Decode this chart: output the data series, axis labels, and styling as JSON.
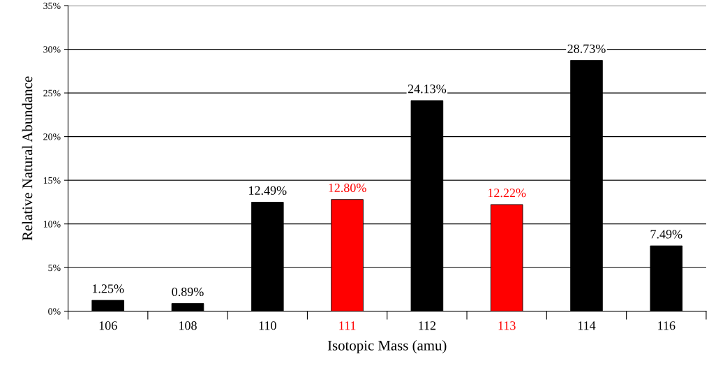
{
  "chart_data": {
    "type": "bar",
    "xlabel": "Isotopic Mass (amu)",
    "ylabel": "Relative Natural Abundance",
    "categories": [
      "106",
      "108",
      "110",
      "111",
      "112",
      "113",
      "114",
      "116"
    ],
    "values": [
      1.25,
      0.89,
      12.49,
      12.8,
      24.13,
      12.22,
      28.73,
      7.49
    ],
    "value_labels": [
      "1.25%",
      "0.89%",
      "12.49%",
      "12.80%",
      "24.13%",
      "12.22%",
      "28.73%",
      "7.49%"
    ],
    "colors": [
      "#000000",
      "#000000",
      "#000000",
      "#ff0000",
      "#000000",
      "#ff0000",
      "#000000",
      "#000000"
    ],
    "ylim": [
      0,
      35
    ],
    "yticks": [
      {
        "value": 0,
        "label": "0%"
      },
      {
        "value": 5,
        "label": "5%"
      },
      {
        "value": 10,
        "label": "10%"
      },
      {
        "value": 15,
        "label": "15%"
      },
      {
        "value": 20,
        "label": "20%"
      },
      {
        "value": 25,
        "label": "25%"
      },
      {
        "value": 30,
        "label": "30%"
      },
      {
        "value": 35,
        "label": "35%"
      }
    ],
    "grid": "y",
    "legend": false
  }
}
